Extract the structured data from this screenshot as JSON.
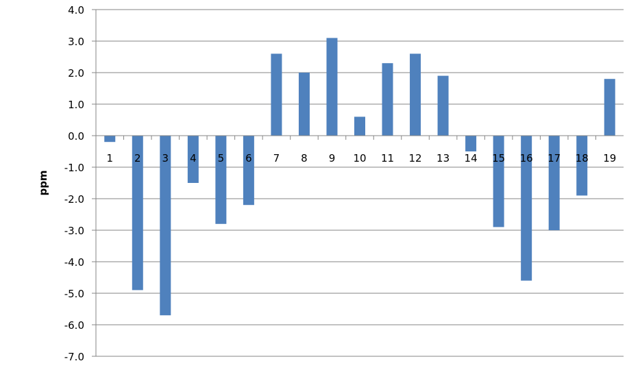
{
  "chart_data": {
    "type": "bar",
    "title": "",
    "xlabel": "",
    "ylabel": "ppm",
    "ylim": [
      -7,
      4
    ],
    "ytick_step": 1,
    "ytick_labels": [
      "4.0",
      "3.0",
      "2.0",
      "1.0",
      "0.0",
      "-1.0",
      "-2.0",
      "-3.0",
      "-4.0",
      "-5.0",
      "-6.0",
      "-7.0"
    ],
    "grid": true,
    "legend": "none",
    "categories": [
      "1",
      "2",
      "3",
      "4",
      "5",
      "6",
      "7",
      "8",
      "9",
      "10",
      "11",
      "12",
      "13",
      "14",
      "15",
      "16",
      "17",
      "18",
      "19"
    ],
    "values": [
      -0.2,
      -4.9,
      -5.7,
      -1.5,
      -2.8,
      -2.2,
      2.6,
      2.0,
      3.1,
      0.6,
      2.3,
      2.6,
      1.9,
      -0.5,
      -2.9,
      -4.6,
      -3.0,
      -1.9,
      1.8
    ],
    "bar_color": "#4F81BD"
  }
}
